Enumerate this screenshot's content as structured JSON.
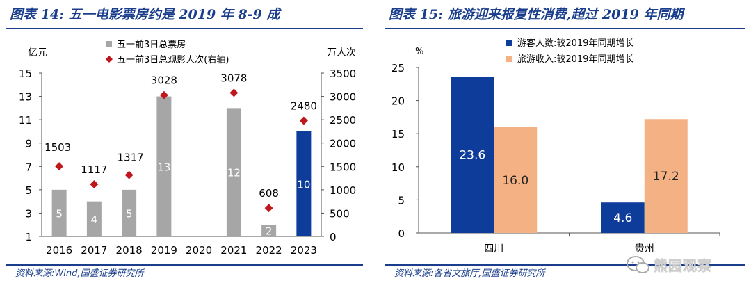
{
  "left": {
    "title": "图表 14:  五一电影票房约是 2019 年 8-9 成",
    "source": "资料来源:Wind,国盛证券研究所"
  },
  "right": {
    "title": "图表 15:  旅游迎来报复性消费,超过 2019 年同期",
    "source": "资料来源:各省文旅厅,国盛证券研究所"
  },
  "watermark": "熊园观察",
  "chart_data": [
    {
      "type": "bar",
      "title": "五一电影票房约是 2019 年 8-9 成",
      "ylabel": "亿元",
      "y2label": "万人次",
      "categories": [
        "2016",
        "2017",
        "2018",
        "2019",
        "2020",
        "2021",
        "2022",
        "2023"
      ],
      "ylim": [
        1,
        15
      ],
      "yticks": [
        1,
        3,
        5,
        7,
        9,
        11,
        13,
        15
      ],
      "y2lim": [
        0,
        3500
      ],
      "y2ticks": [
        0,
        500,
        1000,
        1500,
        2000,
        2500,
        3000,
        3500
      ],
      "series": [
        {
          "name": "五一前3日总票房",
          "kind": "bar",
          "axis": "left",
          "values": [
            5,
            4,
            5,
            13,
            null,
            12,
            2,
            10
          ],
          "labels": [
            "5",
            "4",
            "5",
            "13",
            "",
            "12",
            "2",
            "10"
          ],
          "color": "#a6a6a6",
          "highlight_color": "#0d3c9a"
        },
        {
          "name": "五一前3日总观影人次(右轴)",
          "kind": "marker",
          "axis": "right",
          "values": [
            1503,
            1117,
            1317,
            3028,
            null,
            3078,
            608,
            2480
          ],
          "labels": [
            "1503",
            "1117",
            "1317",
            "3028",
            "",
            "3078",
            "608",
            "2480"
          ],
          "color": "#c0171c"
        }
      ]
    },
    {
      "type": "bar",
      "title": "旅游迎来报复性消费,超过 2019 年同期",
      "ylabel": "%",
      "categories": [
        "四川",
        "贵州"
      ],
      "ylim": [
        0,
        25
      ],
      "yticks": [
        0,
        5,
        10,
        15,
        20,
        25
      ],
      "series": [
        {
          "name": "游客人数:较2019年同期增长",
          "values": [
            23.6,
            4.6
          ],
          "labels": [
            "23.6",
            "4.6"
          ],
          "color": "#0d3c9a",
          "label_color": "#ffffff"
        },
        {
          "name": "旅游收入:较2019年同期增长",
          "values": [
            16.0,
            17.2
          ],
          "labels": [
            "16.0",
            "17.2"
          ],
          "color": "#f4b183",
          "label_color": "#222222"
        }
      ]
    }
  ]
}
